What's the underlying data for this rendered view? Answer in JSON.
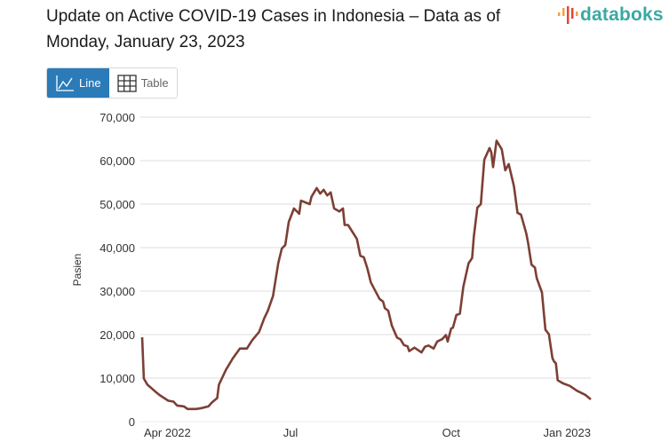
{
  "title": "Update on Active COVID-19 Cases in Indonesia – Data as of Monday, January 23, 2023",
  "logo": {
    "text": "databoks",
    "colors": [
      "#f0a04b",
      "#e4473a",
      "#3aa9a3"
    ]
  },
  "view_toggle": {
    "line_label": "Line",
    "table_label": "Table",
    "active": "Line",
    "line_icon": "line-chart-icon",
    "table_icon": "table-grid-icon",
    "active_color": "#2b7bb9"
  },
  "chart_data": {
    "type": "line",
    "title": "Update on Active COVID-19 Cases in Indonesia – Data as of Monday, January 23, 2023",
    "xlabel": "",
    "ylabel": "Pasien",
    "ylim": [
      0,
      70000
    ],
    "xlim": [
      "2022-04-06",
      "2022-12-20"
    ],
    "yticks": [
      0,
      10000,
      20000,
      30000,
      40000,
      50000,
      60000,
      70000
    ],
    "ytick_labels": [
      "0",
      "10,000",
      "20,000",
      "30,000",
      "40,000",
      "50,000",
      "60,000",
      "70,000"
    ],
    "xticks": [
      "2022-04-01",
      "2022-07-01",
      "2022-10-01",
      "2023-01-01"
    ],
    "xtick_labels": [
      "Apr 2022",
      "Jul",
      "Oct",
      "Jan 2023"
    ],
    "grid": true,
    "legend": "none",
    "line_color": "#7d3f35",
    "x": [
      "2022-04-07",
      "2022-04-08",
      "2022-04-10",
      "2022-04-14",
      "2022-04-17",
      "2022-04-22",
      "2022-04-25",
      "2022-04-27",
      "2022-05-01",
      "2022-05-03",
      "2022-05-08",
      "2022-05-11",
      "2022-05-15",
      "2022-05-17",
      "2022-05-20",
      "2022-05-21",
      "2022-05-25",
      "2022-05-29",
      "2022-06-02",
      "2022-06-06",
      "2022-06-09",
      "2022-06-13",
      "2022-06-16",
      "2022-06-18",
      "2022-06-21",
      "2022-06-24",
      "2022-06-26",
      "2022-06-28",
      "2022-06-30",
      "2022-07-03",
      "2022-07-06",
      "2022-07-07",
      "2022-07-12",
      "2022-07-13",
      "2022-07-16",
      "2022-07-18",
      "2022-07-20",
      "2022-07-22",
      "2022-07-24",
      "2022-07-26",
      "2022-07-29",
      "2022-07-31",
      "2022-08-01",
      "2022-08-03",
      "2022-08-08",
      "2022-08-10",
      "2022-08-12",
      "2022-08-14",
      "2022-08-16",
      "2022-08-21",
      "2022-08-23",
      "2022-08-24",
      "2022-08-26",
      "2022-08-28",
      "2022-08-31",
      "2022-09-02",
      "2022-09-04",
      "2022-09-06",
      "2022-09-07",
      "2022-09-10",
      "2022-09-14",
      "2022-09-16",
      "2022-09-18",
      "2022-09-21",
      "2022-09-23",
      "2022-09-26",
      "2022-09-28",
      "2022-09-29",
      "2022-10-01",
      "2022-10-02",
      "2022-10-04",
      "2022-10-06",
      "2022-10-08",
      "2022-10-11",
      "2022-10-13",
      "2022-10-14",
      "2022-10-16",
      "2022-10-18",
      "2022-10-20",
      "2022-10-23",
      "2022-10-24",
      "2022-10-25",
      "2022-10-27",
      "2022-10-30",
      "2022-11-01",
      "2022-11-03",
      "2022-11-06",
      "2022-11-08",
      "2022-11-10",
      "2022-11-13",
      "2022-11-14",
      "2022-11-16",
      "2022-11-18",
      "2022-11-19",
      "2022-11-22",
      "2022-11-24",
      "2022-11-26",
      "2022-11-28",
      "2022-11-29",
      "2022-11-30",
      "2022-12-01",
      "2022-12-04",
      "2022-12-08",
      "2022-12-12",
      "2022-12-17",
      "2022-12-20"
    ],
    "values": [
      19400,
      9900,
      8500,
      7100,
      6100,
      4800,
      4600,
      3700,
      3500,
      2900,
      2900,
      3100,
      3500,
      4400,
      5400,
      8500,
      11900,
      14600,
      16800,
      16800,
      18700,
      20600,
      23800,
      25500,
      28900,
      36400,
      39800,
      40600,
      45900,
      49000,
      47800,
      50800,
      50000,
      51700,
      53700,
      52400,
      53300,
      52000,
      52700,
      49000,
      48300,
      49000,
      45200,
      45200,
      42000,
      38100,
      37800,
      35200,
      32000,
      28200,
      27600,
      26100,
      25500,
      22100,
      19300,
      18900,
      17600,
      17300,
      16200,
      17000,
      15900,
      17200,
      17500,
      16800,
      18400,
      19000,
      19900,
      18400,
      21400,
      21600,
      24500,
      24800,
      31000,
      36400,
      37600,
      42500,
      49200,
      50000,
      60200,
      62900,
      61900,
      58500,
      64600,
      62600,
      57800,
      59200,
      54100,
      48000,
      47600,
      43300,
      41200,
      36100,
      35400,
      33000,
      29700,
      21100,
      20100,
      14600,
      13800,
      13400,
      9500,
      8800,
      8200,
      7100,
      6100,
      5100
    ]
  }
}
